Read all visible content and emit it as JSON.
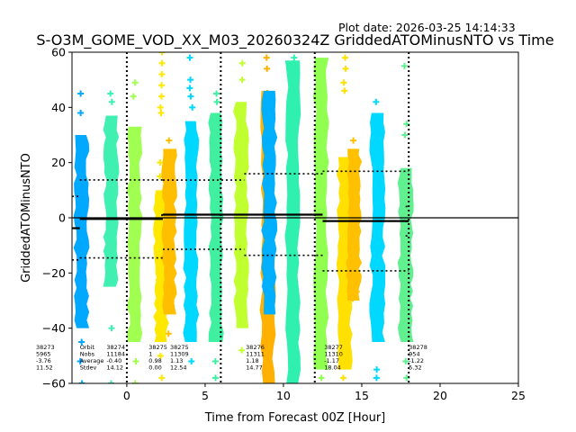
{
  "plot_date": "Plot date: 2026-03-25 14:14:33",
  "chart_data": {
    "type": "scatter",
    "title": "S-O3M_GOME_VOD_XX_M03_20260324Z GriddedATOMinusNTO vs Time",
    "xlabel": "Time from Forecast 00Z [Hour]",
    "ylabel": "GriddedATOMinusNTO",
    "xlim": [
      -3.5,
      25
    ],
    "ylim": [
      -60,
      60
    ],
    "xticks": [
      0,
      5,
      10,
      15,
      20,
      25
    ],
    "yticks": [
      -60,
      -40,
      -20,
      0,
      20,
      40,
      60
    ],
    "grid": false,
    "marker": "plus",
    "zero_line": 0,
    "forecast_boundaries": [
      0,
      6,
      12,
      18
    ],
    "strips": [
      {
        "x": -2.9,
        "color": "#00a8ff",
        "core": [
          -40,
          30
        ],
        "outliers": [
          45,
          38,
          -45,
          -52,
          -60
        ]
      },
      {
        "x": -1.0,
        "color": "#40f0b0",
        "core": [
          -25,
          37
        ],
        "outliers": [
          45,
          42,
          -40,
          -60
        ]
      },
      {
        "x": 0.5,
        "color": "#a0ff50",
        "core": [
          -45,
          33
        ],
        "outliers": [
          49,
          44,
          -52,
          -60
        ]
      },
      {
        "x": 2.2,
        "color": "#ffe800",
        "core": [
          -45,
          10
        ],
        "outliers": [
          60,
          56,
          52,
          48,
          44,
          40,
          38,
          20,
          15,
          -50,
          -58
        ]
      },
      {
        "x": 2.7,
        "color": "#ffbf00",
        "core": [
          -35,
          25
        ],
        "outliers": [
          28,
          -42
        ]
      },
      {
        "x": 4.1,
        "color": "#00d8ff",
        "core": [
          -45,
          35
        ],
        "outliers": [
          58,
          50,
          47,
          44,
          40,
          -52
        ]
      },
      {
        "x": 5.7,
        "color": "#40f0a0",
        "core": [
          -45,
          38
        ],
        "outliers": [
          45,
          42,
          -52,
          -58
        ]
      },
      {
        "x": 7.3,
        "color": "#c0ff30",
        "core": [
          -40,
          42
        ],
        "outliers": [
          56,
          50,
          -48
        ]
      },
      {
        "x": 9.0,
        "color": "#ffb000",
        "core": [
          -60,
          46
        ],
        "outliers": [
          58,
          54
        ]
      },
      {
        "x": 9.1,
        "color": "#00b0ff",
        "core": [
          -35,
          46
        ],
        "outliers": [
          -28,
          -25,
          -32,
          20
        ]
      },
      {
        "x": 10.6,
        "color": "#30f0b0",
        "core": [
          -60,
          57
        ],
        "outliers": [
          58
        ]
      },
      {
        "x": 12.4,
        "color": "#90ff50",
        "core": [
          -55,
          58
        ],
        "outliers": [
          -58
        ]
      },
      {
        "x": 13.9,
        "color": "#ffe000",
        "core": [
          -55,
          22
        ],
        "outliers": [
          58,
          54,
          49,
          46,
          -58
        ]
      },
      {
        "x": 14.5,
        "color": "#ffc000",
        "core": [
          -30,
          25
        ],
        "outliers": [
          28
        ]
      },
      {
        "x": 16.0,
        "color": "#00d8ff",
        "core": [
          -45,
          38
        ],
        "outliers": [
          42,
          -55,
          -58
        ]
      },
      {
        "x": 17.8,
        "color": "#60f090",
        "core": [
          -45,
          18
        ],
        "outliers": [
          55,
          34,
          30,
          -52,
          -58
        ]
      }
    ],
    "orbits": [
      {
        "orbit": "38273",
        "nobs": "5965",
        "average": "-3.76",
        "stdev": "11.52",
        "mean": -3.76,
        "sd": 11.52,
        "x_start": -3.5,
        "x_end": -3.0,
        "label_x": -3.5
      },
      {
        "orbit": "38274",
        "nobs": "11184",
        "average": "-0.40",
        "stdev": "14.12",
        "mean": -0.4,
        "sd": 14.12,
        "x_start": -3.0,
        "x_end": 2.3,
        "label_x": -3.0
      },
      {
        "orbit": "38275",
        "nobs": "1",
        "average": "0.98",
        "stdev": "0.00",
        "mean": 0.98,
        "sd": 0.0,
        "x_start": 2.2,
        "x_end": 2.3,
        "label_x": 1.4
      },
      {
        "orbit": "38275",
        "nobs": "11309",
        "average": "1.13",
        "stdev": "12.54",
        "mean": 1.13,
        "sd": 12.54,
        "x_start": 2.3,
        "x_end": 12.5,
        "sd_x_end": 7.5,
        "label_x": 2.3
      },
      {
        "orbit": "38276",
        "nobs": "11311",
        "average": "1.18",
        "stdev": "14.77",
        "mean": 1.18,
        "sd": 14.77,
        "x_start": 7.5,
        "x_end": 12.5,
        "draw_mean": false,
        "label_x": 7.6
      },
      {
        "orbit": "38277",
        "nobs": "11310",
        "average": "-1.17",
        "stdev": "18.04",
        "mean": -1.17,
        "sd": 18.04,
        "x_start": 12.5,
        "x_end": 18.0,
        "label_x": 12.6
      },
      {
        "orbit": "38278",
        "nobs": "954",
        "average": "-1.22",
        "stdev": "5.32",
        "mean": -1.22,
        "sd": 5.32,
        "x_start": 17.8,
        "x_end": 18.0,
        "label_x": 18.0
      }
    ],
    "stat_labels": [
      "Orbit",
      "Nobs",
      "Average",
      "Stdev"
    ],
    "stat_labels_x": -3.0
  }
}
